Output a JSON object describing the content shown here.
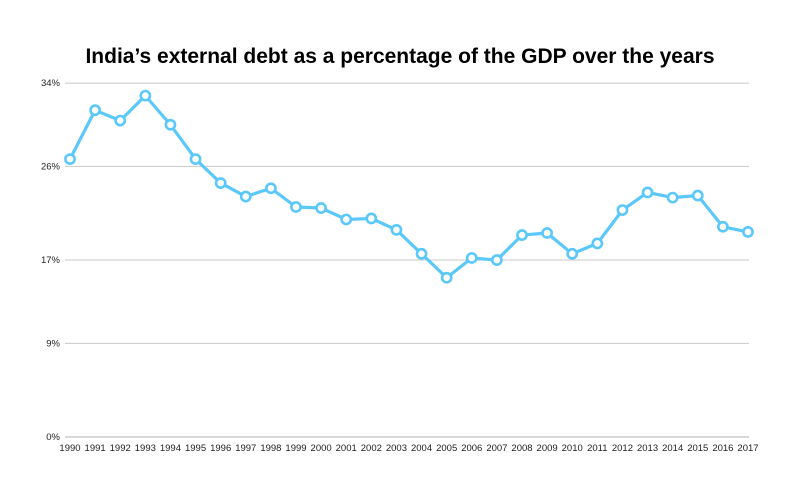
{
  "chart_data": {
    "type": "line",
    "title": "India’s external debt as a percentage of the GDP over the years",
    "xlabel": "",
    "ylabel": "",
    "x": [
      "1990",
      "1991",
      "1992",
      "1993",
      "1994",
      "1995",
      "1996",
      "1997",
      "1998",
      "1999",
      "2000",
      "2001",
      "2002",
      "2003",
      "2004",
      "2005",
      "2006",
      "2007",
      "2008",
      "2009",
      "2010",
      "2011",
      "2012",
      "2013",
      "2014",
      "2015",
      "2016",
      "2017"
    ],
    "series": [
      {
        "values": [
          26.7,
          31.4,
          30.4,
          32.8,
          30.0,
          26.7,
          24.4,
          23.1,
          23.9,
          22.1,
          22.0,
          20.9,
          21.0,
          19.9,
          17.6,
          15.3,
          17.2,
          17.0,
          19.4,
          19.6,
          17.6,
          18.6,
          21.8,
          23.5,
          23.0,
          23.2,
          20.2,
          19.7
        ]
      }
    ],
    "yticks": [
      0,
      9,
      17,
      26,
      34
    ],
    "ytick_labels": [
      "0%",
      "9%",
      "17%",
      "26%",
      "34%"
    ],
    "ylim": [
      0,
      34.3
    ],
    "grid": true,
    "line_color": "#5ac8fa",
    "marker": "hollow-circle",
    "legend": "none"
  }
}
